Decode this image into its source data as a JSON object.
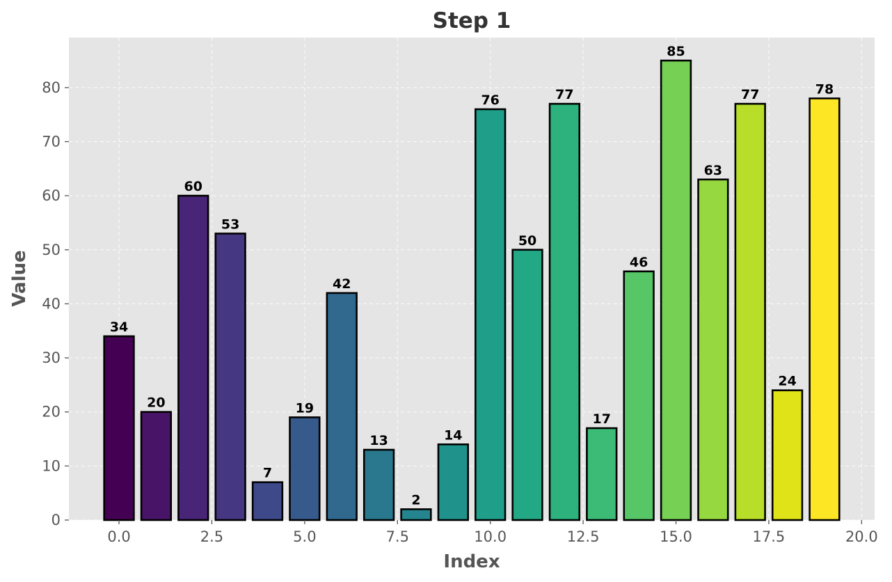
{
  "chart_data": {
    "type": "bar",
    "title": "Step 1",
    "xlabel": "Index",
    "ylabel": "Value",
    "x": [
      0,
      1,
      2,
      3,
      4,
      5,
      6,
      7,
      8,
      9,
      10,
      11,
      12,
      13,
      14,
      15,
      16,
      17,
      18,
      19
    ],
    "values": [
      34,
      20,
      60,
      53,
      7,
      19,
      42,
      13,
      2,
      14,
      76,
      50,
      77,
      17,
      46,
      85,
      63,
      77,
      24,
      78
    ],
    "colors": [
      "#440154",
      "#481467",
      "#482576",
      "#453781",
      "#3e4989",
      "#375a8c",
      "#30688e",
      "#2a788e",
      "#25858e",
      "#20928c",
      "#1f9e89",
      "#22a884",
      "#2db27d",
      "#3bbb75",
      "#56c667",
      "#75d054",
      "#95d840",
      "#b8de29",
      "#dfe318",
      "#fde725"
    ],
    "xlim": [
      -1.35,
      20.35
    ],
    "ylim": [
      0,
      89.25
    ],
    "xticks": [
      0.0,
      2.5,
      5.0,
      7.5,
      10.0,
      12.5,
      15.0,
      17.5,
      20.0
    ],
    "xtick_labels": [
      "0.0",
      "2.5",
      "5.0",
      "7.5",
      "10.0",
      "12.5",
      "15.0",
      "17.5",
      "20.0"
    ],
    "yticks": [
      0,
      10,
      20,
      30,
      40,
      50,
      60,
      70,
      80
    ],
    "ytick_labels": [
      "0",
      "10",
      "20",
      "30",
      "40",
      "50",
      "60",
      "70",
      "80"
    ],
    "grid": true,
    "background": "#e5e5e5",
    "bar_edge_color": "#000000"
  }
}
